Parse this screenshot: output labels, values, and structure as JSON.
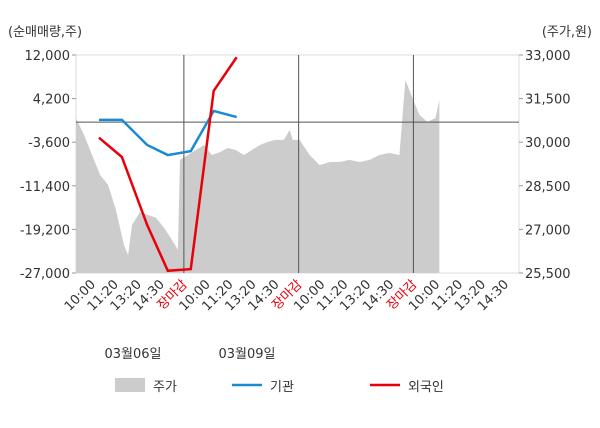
{
  "chart_data": {
    "type": "combo",
    "ylabel": "(순매매량,주)",
    "y2label": "(주가,원)",
    "categories": [
      "10:00",
      "11:20",
      "13:20",
      "14:30",
      "장마감",
      "10:00",
      "11:20",
      "13:20",
      "14:30",
      "장마감",
      "10:00",
      "11:20",
      "13:20",
      "14:30",
      "장마감",
      "10:00",
      "11:20",
      "13:20",
      "14:30"
    ],
    "highlight_category": "장마감",
    "highlight_color": "#e8000b",
    "dates": [
      "03월06일",
      "03월09일"
    ],
    "xlim": [
      -0.7,
      18.6
    ],
    "ylim": [
      -27000,
      12000
    ],
    "yticks": [
      {
        "value": 12000,
        "label": "12,000"
      },
      {
        "value": 4200,
        "label": "4,200"
      },
      {
        "value": -3600,
        "label": "-3,600"
      },
      {
        "value": -11400,
        "label": "-11,400"
      },
      {
        "value": -19200,
        "label": "-19,200"
      },
      {
        "value": -27000,
        "label": "-27,000"
      }
    ],
    "y2lim": [
      25500,
      33000
    ],
    "y2ticks": [
      {
        "value": 33000,
        "label": "33,000"
      },
      {
        "value": 31500,
        "label": "31,500"
      },
      {
        "value": 30000,
        "label": "30,000"
      },
      {
        "value": 28500,
        "label": "28,500"
      },
      {
        "value": 27000,
        "label": "27,000"
      },
      {
        "value": 25500,
        "label": "25,500"
      }
    ],
    "series": [
      {
        "name": "주가",
        "type": "area",
        "axis": "y2",
        "color": "#cccccc",
        "x": [
          -0.7,
          -0.35,
          0,
          0.35,
          0.7,
          1.04,
          1.39,
          1.57,
          1.74,
          2.09,
          2.43,
          2.78,
          3.13,
          3.48,
          3.74,
          3.83,
          4.17,
          4.52,
          4.87,
          5.22,
          5.57,
          5.91,
          6.26,
          6.61,
          6.96,
          7.3,
          7.65,
          8.0,
          8.35,
          8.61,
          8.74,
          9.04,
          9.48,
          9.91,
          10.35,
          10.78,
          11.22,
          11.65,
          12.09,
          12.52,
          12.96,
          13.39,
          13.65,
          13.91,
          14.26,
          14.61,
          14.96,
          15.13
        ],
        "values": [
          30830,
          30250,
          29560,
          28870,
          28530,
          27670,
          26460,
          26120,
          27150,
          27600,
          27500,
          27400,
          27060,
          26640,
          26300,
          29390,
          29560,
          29730,
          29900,
          29560,
          29660,
          29800,
          29730,
          29560,
          29730,
          29900,
          30010,
          30080,
          30080,
          30420,
          30080,
          30080,
          29560,
          29210,
          29320,
          29320,
          29390,
          29320,
          29390,
          29560,
          29630,
          29560,
          32140,
          31620,
          30940,
          30700,
          30830,
          31450
        ]
      },
      {
        "name": "기관",
        "type": "line",
        "color": "#1a8ad4",
        "x": [
          0.3,
          1.3,
          2.4,
          3.3,
          4.3,
          5.3,
          6.3
        ],
        "values": [
          400,
          400,
          -4100,
          -5900,
          -5200,
          2000,
          900
        ]
      },
      {
        "name": "외국인",
        "type": "line",
        "color": "#e8000b",
        "x": [
          0.3,
          1.3,
          2.4,
          3.3,
          4.3,
          5.3,
          6.3
        ],
        "values": [
          -2800,
          -6250,
          -18400,
          -26600,
          -26300,
          5600,
          11600
        ]
      }
    ]
  }
}
